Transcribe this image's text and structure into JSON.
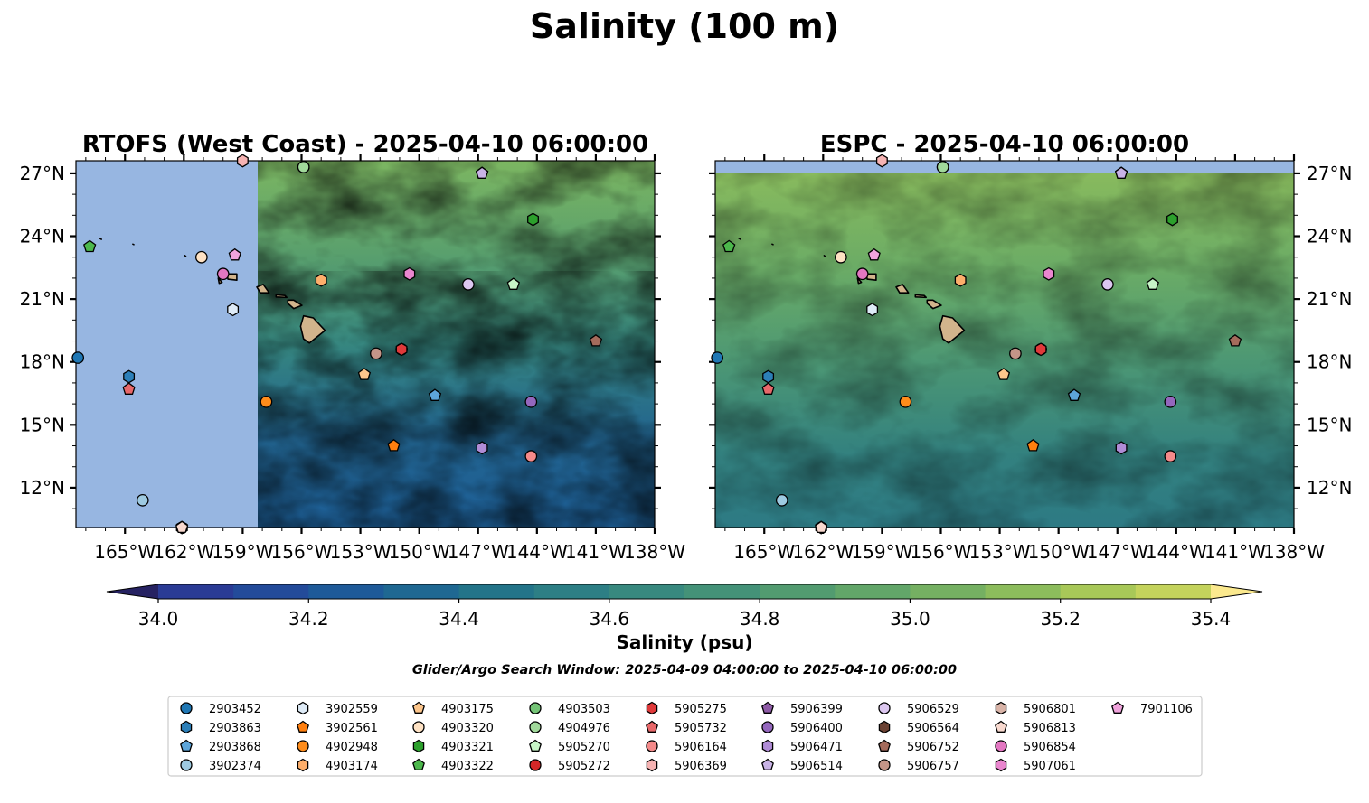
{
  "figure": {
    "suptitle": "Salinity (100 m)",
    "search_window": "Glider/Argo Search Window: 2025-04-09 04:00:00 to 2025-04-10 06:00:00"
  },
  "chart_data": [
    {
      "type": "heatmap",
      "title": "RTOFS (West Coast) - 2025-04-10 06:00:00",
      "x_tick_labels": [
        "165°W",
        "162°W",
        "159°W",
        "156°W",
        "153°W",
        "150°W",
        "147°W",
        "144°W",
        "141°W",
        "138°W"
      ],
      "y_tick_labels": [
        "12°N",
        "15°N",
        "18°N",
        "21°N",
        "24°N",
        "27°N"
      ],
      "xlim": [
        -167.5,
        -138.0
      ],
      "ylim": [
        10.1,
        27.6
      ],
      "model_domain_west_edge_lon": -158.2,
      "land_color": "#d2b48c",
      "ocean_mask_color": "#97b6e1"
    },
    {
      "type": "heatmap",
      "title": "ESPC - 2025-04-10 06:00:00",
      "x_tick_labels": [
        "165°W",
        "162°W",
        "159°W",
        "156°W",
        "153°W",
        "150°W",
        "147°W",
        "144°W",
        "141°W",
        "138°W"
      ],
      "y_tick_labels": [
        "12°N",
        "15°N",
        "18°N",
        "21°N",
        "24°N",
        "27°N"
      ],
      "xlim": [
        -167.5,
        -138.0
      ],
      "ylim": [
        10.1,
        27.6
      ],
      "model_domain_north_edge_lat": 27.1,
      "land_color": "#d2b48c",
      "ocean_mask_color": "#97b6e1"
    }
  ],
  "colorbar": {
    "label": "Salinity (psu)",
    "vmin": 34.0,
    "vmax": 35.4,
    "step": 0.1,
    "extend": "both",
    "tick_labels": [
      "34.0",
      "34.2",
      "34.4",
      "34.6",
      "34.8",
      "35.0",
      "35.2",
      "35.4"
    ],
    "colors": [
      "#2a2c84",
      "#2a3b95",
      "#234b9a",
      "#1e5a99",
      "#1f6892",
      "#237489",
      "#2d7f85",
      "#38897f",
      "#449278",
      "#529b70",
      "#62a669",
      "#75b062",
      "#8cbc5c",
      "#a8c858",
      "#c4d35c",
      "#dde36d"
    ],
    "under_color": "#262262",
    "over_color": "#fbe98e"
  },
  "floats": [
    {
      "id": "2903452",
      "marker": "circle",
      "color": "#1f77b4",
      "lon": -167.4,
      "lat": 18.2
    },
    {
      "id": "2903863",
      "marker": "hexagon",
      "color": "#2c7fb8",
      "lon": -164.8,
      "lat": 17.3
    },
    {
      "id": "2903868",
      "marker": "pentagon",
      "color": "#5da5da",
      "lon": -149.2,
      "lat": 16.4
    },
    {
      "id": "3902374",
      "marker": "circle",
      "color": "#9ecae1",
      "lon": -164.1,
      "lat": 11.4
    },
    {
      "id": "3902559",
      "marker": "hexagon",
      "color": "#deebf7",
      "lon": -159.5,
      "lat": 20.5
    },
    {
      "id": "3902561",
      "marker": "pentagon",
      "color": "#ff7f0e",
      "lon": -151.3,
      "lat": 14.0
    },
    {
      "id": "4902948",
      "marker": "circle",
      "color": "#ff8c1a",
      "lon": -157.8,
      "lat": 16.1
    },
    {
      "id": "4903174",
      "marker": "hexagon",
      "color": "#fdae6b",
      "lon": -155.0,
      "lat": 21.9
    },
    {
      "id": "4903175",
      "marker": "pentagon",
      "color": "#fdc68c",
      "lon": -152.8,
      "lat": 17.4
    },
    {
      "id": "4903320",
      "marker": "circle",
      "color": "#fee2c4",
      "lon": -161.1,
      "lat": 23.0
    },
    {
      "id": "4903321",
      "marker": "hexagon",
      "color": "#2ca02c",
      "lon": -144.2,
      "lat": 24.8
    },
    {
      "id": "4903322",
      "marker": "pentagon",
      "color": "#4cb84c",
      "lon": -166.8,
      "lat": 23.5
    },
    {
      "id": "4903503",
      "marker": "circle",
      "color": "#74c476",
      "lon": -155.9,
      "lat": 27.3
    },
    {
      "id": "4904976",
      "marker": "circle",
      "color": "#a1d99b",
      "lon": -155.9,
      "lat": 27.3
    },
    {
      "id": "5905270",
      "marker": "pentagon",
      "color": "#c7f5c7",
      "lon": -145.2,
      "lat": 21.7
    },
    {
      "id": "5905272",
      "marker": "circle",
      "color": "#d62728",
      "lon": -150.9,
      "lat": 18.6
    },
    {
      "id": "5905275",
      "marker": "hexagon",
      "color": "#e0393a",
      "lon": -150.9,
      "lat": 18.6
    },
    {
      "id": "5905732",
      "marker": "pentagon",
      "color": "#e8686a",
      "lon": -164.8,
      "lat": 16.7
    },
    {
      "id": "5906164",
      "marker": "circle",
      "color": "#f48a8a",
      "lon": -144.3,
      "lat": 13.5
    },
    {
      "id": "5906369",
      "marker": "hexagon",
      "color": "#f6b3b3",
      "lon": -159.0,
      "lat": 27.6
    },
    {
      "id": "5906399",
      "marker": "pentagon",
      "color": "#8e5ba6",
      "lon": -146.8,
      "lat": 27.0
    },
    {
      "id": "5906400",
      "marker": "circle",
      "color": "#9467bd",
      "lon": -144.3,
      "lat": 16.1
    },
    {
      "id": "5906471",
      "marker": "hexagon",
      "color": "#b08cd6",
      "lon": -146.8,
      "lat": 13.9
    },
    {
      "id": "5906514",
      "marker": "pentagon",
      "color": "#c9b3e6",
      "lon": -146.8,
      "lat": 27.0
    },
    {
      "id": "5906529",
      "marker": "circle",
      "color": "#dcc7f0",
      "lon": -147.5,
      "lat": 21.7
    },
    {
      "id": "5906564",
      "marker": "hexagon",
      "color": "#6b4133",
      "lon": -162.1,
      "lat": 10.1
    },
    {
      "id": "5906752",
      "marker": "pentagon",
      "color": "#a56b5c",
      "lon": -141.0,
      "lat": 19.0
    },
    {
      "id": "5906757",
      "marker": "circle",
      "color": "#c49588",
      "lon": -152.2,
      "lat": 18.4
    },
    {
      "id": "5906801",
      "marker": "hexagon",
      "color": "#d9b4a8",
      "lon": -162.1,
      "lat": 10.1
    },
    {
      "id": "5906813",
      "marker": "pentagon",
      "color": "#f8d9cf",
      "lon": -162.1,
      "lat": 10.1
    },
    {
      "id": "5906854",
      "marker": "circle",
      "color": "#e377c2",
      "lon": -160.0,
      "lat": 22.2
    },
    {
      "id": "5907061",
      "marker": "hexagon",
      "color": "#ea86cf",
      "lon": -150.5,
      "lat": 22.2
    },
    {
      "id": "7901106",
      "marker": "pentagon",
      "color": "#f0a3dc",
      "lon": -159.4,
      "lat": 23.1
    }
  ]
}
